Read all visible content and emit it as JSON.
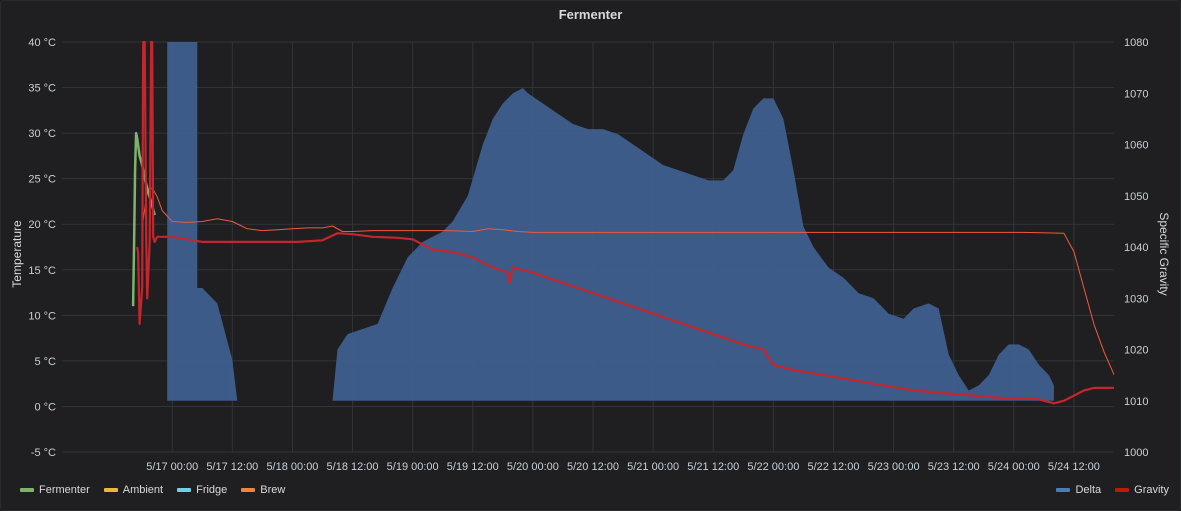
{
  "panel": {
    "title": "Fermenter"
  },
  "chart_data": {
    "type": "line",
    "title": "Fermenter",
    "ylabel": "Temperature",
    "y2label": "Specific Gravity",
    "ylim": [
      -5,
      40
    ],
    "y2lim": [
      1000,
      1080
    ],
    "xlim_hours": [
      -22,
      188
    ],
    "y_ticks": [
      "-5 °C",
      "0 °C",
      "5 °C",
      "10 °C",
      "15 °C",
      "20 °C",
      "25 °C",
      "30 °C",
      "35 °C",
      "40 °C"
    ],
    "y_tick_values": [
      -5,
      0,
      5,
      10,
      15,
      20,
      25,
      30,
      35,
      40
    ],
    "y2_ticks": [
      "1000",
      "1010",
      "1020",
      "1030",
      "1040",
      "1050",
      "1060",
      "1070",
      "1080"
    ],
    "y2_tick_values": [
      1000,
      1010,
      1020,
      1030,
      1040,
      1050,
      1060,
      1070,
      1080
    ],
    "x_ticks": [
      "5/17 00:00",
      "5/17 12:00",
      "5/18 00:00",
      "5/18 12:00",
      "5/19 00:00",
      "5/19 12:00",
      "5/20 00:00",
      "5/20 12:00",
      "5/21 00:00",
      "5/21 12:00",
      "5/22 00:00",
      "5/22 12:00",
      "5/23 00:00",
      "5/23 12:00",
      "5/24 00:00",
      "5/24 12:00"
    ],
    "x_tick_hours": [
      0,
      12,
      24,
      36,
      48,
      60,
      72,
      84,
      96,
      108,
      120,
      132,
      144,
      156,
      168,
      180
    ],
    "grid": true,
    "legend_left": [
      {
        "name": "Fermenter",
        "color": "#7eb26d"
      },
      {
        "name": "Ambient",
        "color": "#eab839"
      },
      {
        "name": "Fridge",
        "color": "#6ed0e0"
      },
      {
        "name": "Brew",
        "color": "#ef843c"
      }
    ],
    "legend_right": [
      {
        "name": "Delta",
        "color": "#447ebc"
      },
      {
        "name": "Gravity",
        "color": "#bf1b00"
      }
    ],
    "series": [
      {
        "name": "Delta",
        "axis": "right",
        "kind": "area",
        "color": "#3e5f8f",
        "hours": [
          -1,
          -1,
          5,
          5,
          6,
          9,
          12,
          13,
          13,
          32,
          33,
          35,
          38,
          41,
          44,
          47,
          50,
          52,
          54,
          56,
          59,
          62,
          64,
          66,
          68,
          70,
          71,
          74,
          77,
          80,
          83,
          86,
          89,
          92,
          95,
          98,
          101,
          104,
          107,
          110,
          112,
          114,
          116,
          118,
          120,
          122,
          124,
          126,
          128,
          131,
          134,
          137,
          140,
          143,
          146,
          148,
          151,
          153,
          155,
          157,
          159,
          161,
          163,
          165,
          167,
          169,
          171,
          173,
          175,
          176,
          176
        ],
        "values": [
          1010,
          1080,
          1080,
          1032,
          1032,
          1029,
          1018,
          1010,
          1010,
          1010,
          1020,
          1023,
          1024,
          1025,
          1032,
          1038,
          1041,
          1042,
          1043,
          1045,
          1050,
          1060,
          1065,
          1068,
          1070,
          1071,
          1070,
          1068,
          1066,
          1064,
          1063,
          1063,
          1062,
          1060,
          1058,
          1056,
          1055,
          1054,
          1053,
          1053,
          1055,
          1062,
          1067,
          1069,
          1069,
          1065,
          1055,
          1044,
          1040,
          1036,
          1034,
          1031,
          1030,
          1027,
          1026,
          1028,
          1029,
          1028,
          1019,
          1015,
          1012,
          1013,
          1015,
          1019,
          1021,
          1021,
          1020,
          1017,
          1015,
          1013,
          1010
        ]
      },
      {
        "name": "Brew",
        "axis": "left",
        "kind": "line",
        "width": 1,
        "color": "#ef5a3c",
        "hours": [
          -6,
          -5,
          -4,
          -3,
          -2,
          0,
          3,
          6,
          9,
          12,
          15,
          18,
          21,
          24,
          27,
          30,
          32,
          34,
          36,
          40,
          45,
          50,
          55,
          60,
          63,
          66,
          69,
          72,
          80,
          90,
          100,
          110,
          120,
          130,
          140,
          150,
          160,
          170,
          178,
          180,
          182,
          184,
          186,
          188
        ],
        "values": [
          19.8,
          23.5,
          24.0,
          23.0,
          21.5,
          20.3,
          20.2,
          20.3,
          20.6,
          20.3,
          19.5,
          19.3,
          19.4,
          19.5,
          19.6,
          19.6,
          19.8,
          19.2,
          19.2,
          19.3,
          19.3,
          19.3,
          19.3,
          19.2,
          19.5,
          19.4,
          19.2,
          19.1,
          19.1,
          19.1,
          19.1,
          19.1,
          19.1,
          19.1,
          19.1,
          19.1,
          19.1,
          19.1,
          19.0,
          17.0,
          13.0,
          9.0,
          6.0,
          3.5
        ]
      },
      {
        "name": "Fermenter",
        "axis": "left",
        "kind": "line",
        "width": 2.5,
        "color": "#7eb26d",
        "hours": [
          -7.8,
          -7.6,
          -7.4,
          -7.2,
          -7.0,
          -6.5,
          -6.0,
          -5.5,
          -5.0,
          -4.5,
          -4.0,
          -3.5
        ],
        "values": [
          11.0,
          18.0,
          26.0,
          30.0,
          29.5,
          27.5,
          26.5,
          25.0,
          24.0,
          23.0,
          22.0,
          21.0
        ]
      },
      {
        "name": "Gravity",
        "axis": "right",
        "kind": "line",
        "width": 2.2,
        "color": "#c4262e",
        "hours": [
          -7,
          -6.8,
          -6.5,
          -6,
          -5.8,
          -5.5,
          -5.2,
          -5,
          -4.5,
          -4.2,
          -4,
          -3.8,
          -3.5,
          -3,
          -2,
          0,
          3,
          6,
          10,
          15,
          20,
          25,
          30,
          33,
          36,
          40,
          45,
          48,
          52,
          56,
          60,
          64,
          67,
          67.3,
          68,
          72,
          78,
          84,
          90,
          96,
          102,
          108,
          114,
          118,
          120,
          124,
          130,
          136,
          142,
          148,
          154,
          160,
          166,
          172,
          176,
          178,
          180,
          182,
          184,
          186,
          188
        ],
        "values": [
          1040,
          1039,
          1025,
          1032,
          1080,
          1080,
          1042,
          1030,
          1041,
          1080,
          1080,
          1042,
          1041,
          1042,
          1042,
          1042,
          1041.5,
          1041,
          1041,
          1041,
          1041,
          1041,
          1041.3,
          1042.7,
          1042.5,
          1042,
          1041.8,
          1041.5,
          1039.5,
          1039,
          1038,
          1036,
          1035,
          1033,
          1036,
          1035,
          1033,
          1031,
          1029,
          1027,
          1025,
          1023,
          1021,
          1020,
          1017,
          1016,
          1015,
          1014,
          1013,
          1012,
          1011.5,
          1011,
          1010.5,
          1010.5,
          1009.5,
          1010,
          1011,
          1012,
          1012.5,
          1012.5,
          1012.5
        ]
      }
    ]
  }
}
